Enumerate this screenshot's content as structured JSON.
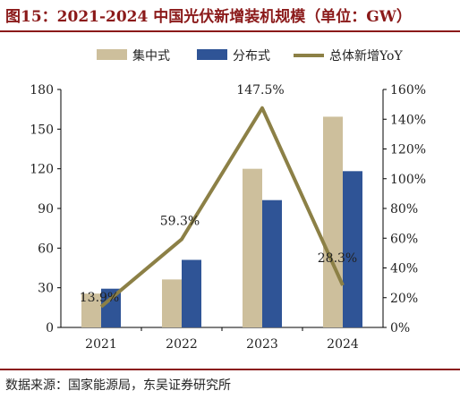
{
  "title": "图15：2021-2024 中国光伏新增装机规模（单位：GW）",
  "source": "数据来源：国家能源局，东吴证券研究所",
  "colors": {
    "title_red": "#8b1a1a",
    "centralized": "#cdbf9c",
    "distributed": "#2f5496",
    "yoy_line": "#8c8046"
  },
  "chart_data": {
    "type": "bar",
    "categories": [
      "2021",
      "2022",
      "2023",
      "2024"
    ],
    "series": [
      {
        "name": "集中式",
        "type": "bar",
        "axis": "left",
        "values": [
          25.6,
          36.3,
          120.0,
          159.4
        ]
      },
      {
        "name": "分布式",
        "type": "bar",
        "axis": "left",
        "values": [
          29.3,
          51.1,
          96.3,
          118.2
        ]
      },
      {
        "name": "总体新增YoY",
        "type": "line",
        "axis": "right",
        "values": [
          13.9,
          59.3,
          147.5,
          28.3
        ]
      }
    ],
    "data_labels": [
      "13.9%",
      "59.3%",
      "147.5%",
      "28.3%"
    ],
    "left_axis": {
      "ylim": [
        0,
        180
      ],
      "ticks": [
        "0",
        "30",
        "60",
        "90",
        "120",
        "150",
        "180"
      ]
    },
    "right_axis": {
      "ylim": [
        0,
        160
      ],
      "ticks": [
        "0%",
        "20%",
        "40%",
        "60%",
        "80%",
        "100%",
        "120%",
        "140%",
        "160%"
      ]
    },
    "legend_position": "top",
    "grid": false
  }
}
